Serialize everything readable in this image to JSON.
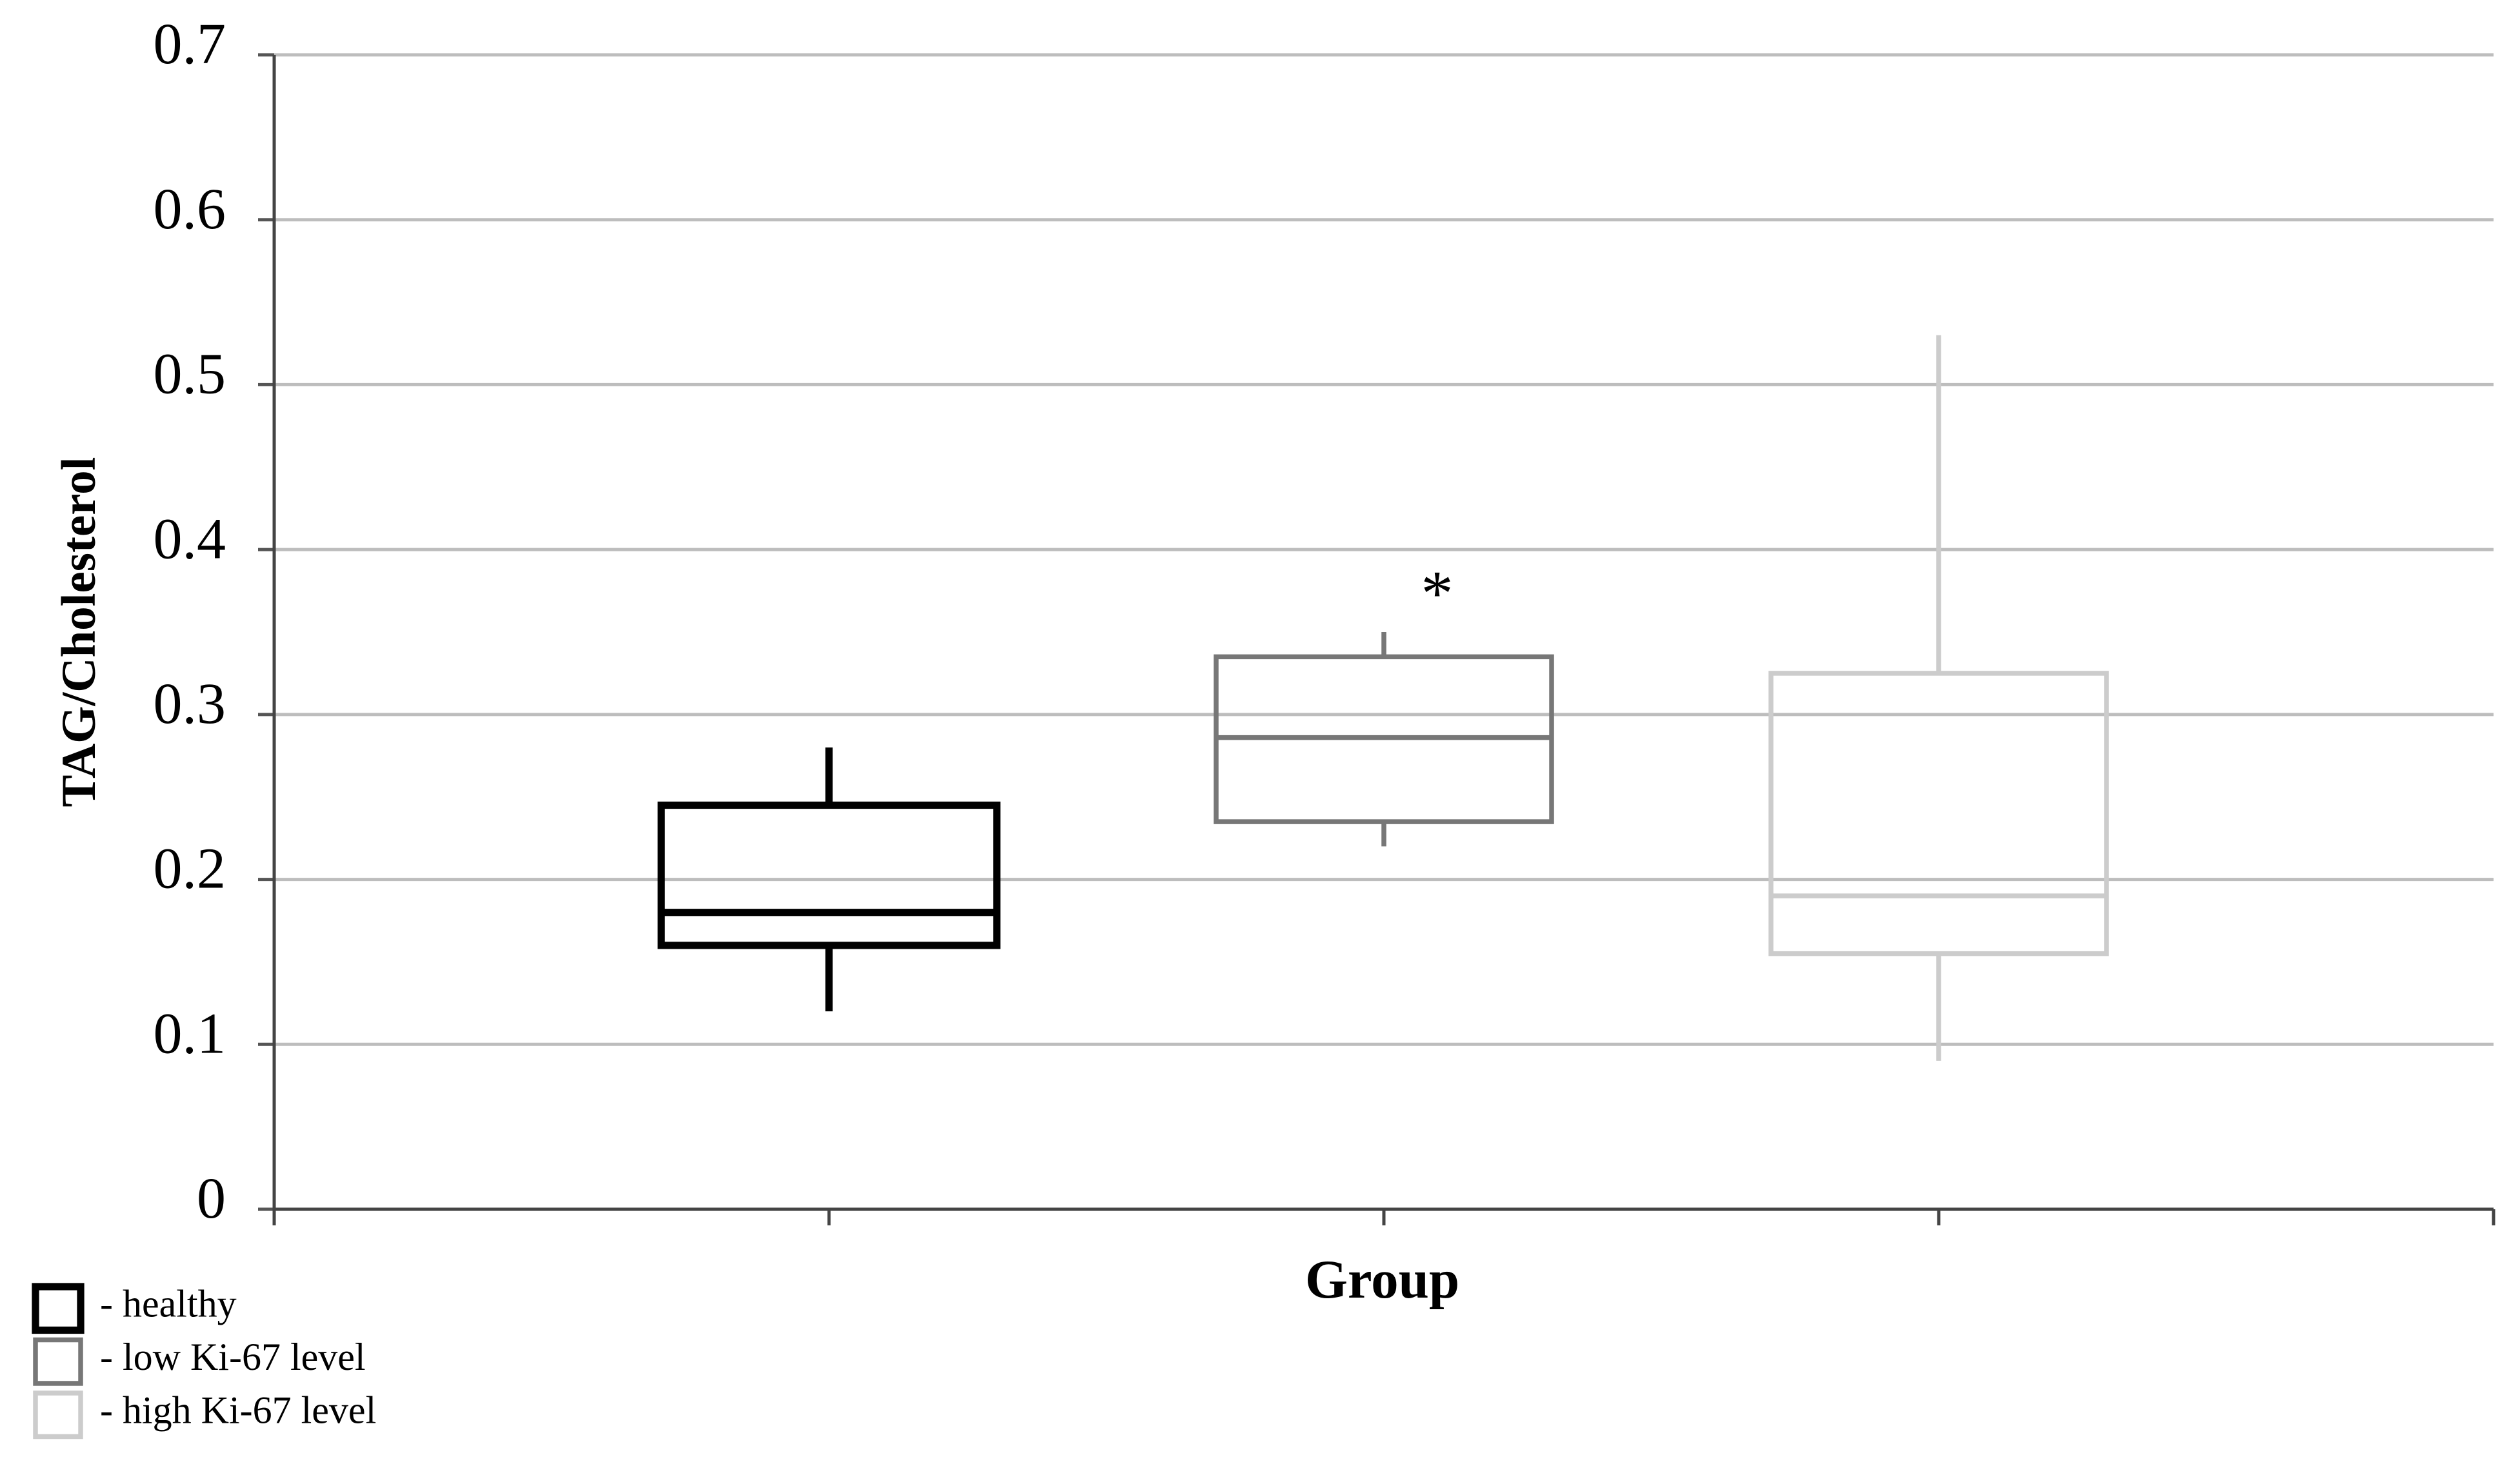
{
  "chart_data": {
    "type": "box",
    "y_label": "TAG/Cholesterol",
    "x_label": "Group",
    "annotation": "*",
    "ylim": [
      0,
      0.7
    ],
    "yticks": [
      0,
      0.1,
      0.2,
      0.3,
      0.4,
      0.5,
      0.6,
      0.7
    ],
    "grid": true,
    "legend": "bottom-left",
    "series": [
      {
        "name": "- healthy",
        "color": "#000000",
        "min": 0.12,
        "q1": 0.16,
        "median": 0.18,
        "q3": 0.245,
        "max": 0.28
      },
      {
        "name": "- low Ki-67 level",
        "color": "#777777",
        "min": 0.22,
        "q1": 0.235,
        "median": 0.286,
        "q3": 0.335,
        "max": 0.35
      },
      {
        "name": "- high Ki-67 level",
        "color": "#cccccc",
        "min": 0.09,
        "q1": 0.155,
        "median": 0.19,
        "q3": 0.325,
        "max": 0.53
      }
    ]
  }
}
